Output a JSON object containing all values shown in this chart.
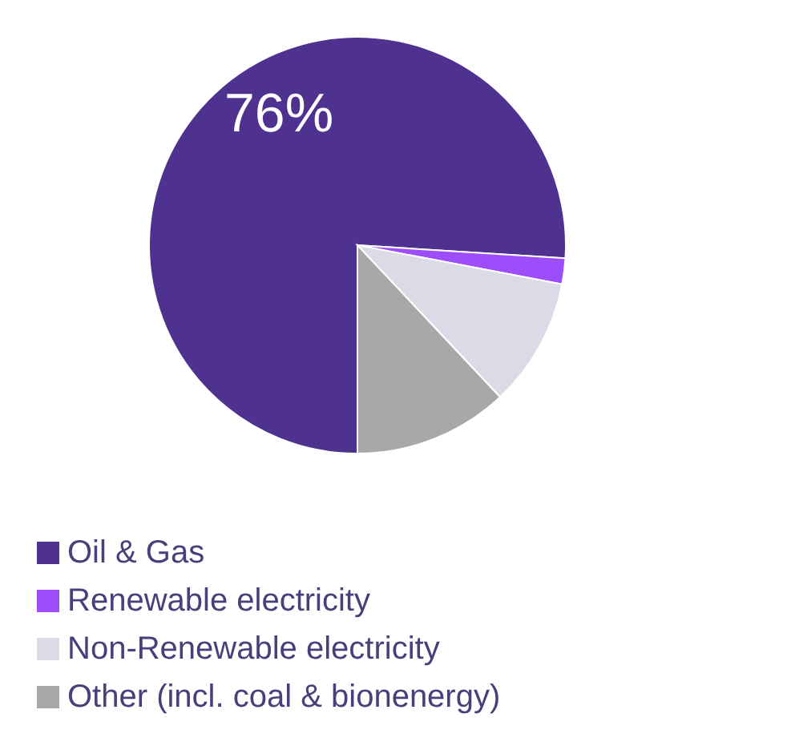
{
  "chart_data": {
    "type": "pie",
    "categories": [
      "Oil & Gas",
      "Renewable electricity",
      "Non-Renewable electricity",
      "Other (incl. coal & bionenergy)"
    ],
    "values": [
      76,
      2,
      10,
      12
    ],
    "colors": [
      "#4f318f",
      "#9d4dfa",
      "#dcdae6",
      "#a8a8a8"
    ],
    "value_labels": [
      "76%",
      null,
      null,
      null
    ],
    "legend": "bottom"
  }
}
